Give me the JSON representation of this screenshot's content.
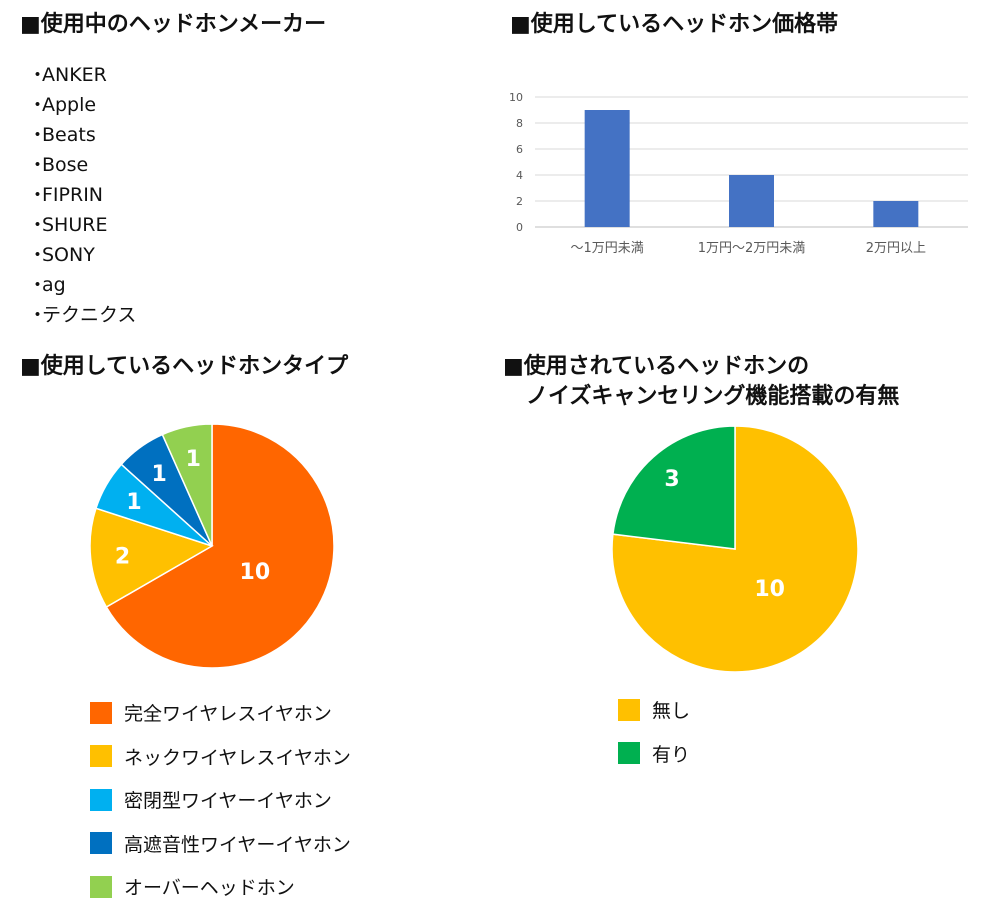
{
  "makers": {
    "title": "■使用中のヘッドホンメーカー",
    "bullet": "・",
    "items": [
      "ANKER",
      "Apple",
      "Beats",
      "Bose",
      "FIPRIN",
      "SHURE",
      "SONY",
      "ag",
      "テクニクス"
    ]
  },
  "price": {
    "title": "■使用しているヘッドホン価格帯"
  },
  "type": {
    "title": "■使用しているヘッドホンタイプ"
  },
  "nc": {
    "title_line1": "■使用されているヘッドホンの",
    "title_line2": "ノイズキャンセリング機能搭載の有無"
  },
  "chart_data": [
    {
      "type": "bar",
      "categories": [
        "～1万円未満",
        "1万円～2万円未満",
        "2万円以上"
      ],
      "values": [
        9,
        4,
        2
      ],
      "ylim": [
        0,
        10
      ],
      "yticks": [
        0,
        2,
        4,
        6,
        8,
        10
      ],
      "grid": true,
      "color": "#4472C4"
    },
    {
      "type": "pie",
      "labels": [
        "完全ワイヤレスイヤホン",
        "ネックワイヤレスイヤホン",
        "密閉型ワイヤーイヤホン",
        "高遮音性ワイヤーイヤホン",
        "オーバーヘッドホン"
      ],
      "values": [
        10,
        2,
        1,
        1,
        1
      ],
      "colors": [
        "#FF6600",
        "#FFC000",
        "#00B0F0",
        "#0070C0",
        "#92D050"
      ],
      "legend": "bottom"
    },
    {
      "type": "pie",
      "labels": [
        "無し",
        "有り"
      ],
      "values": [
        10,
        3
      ],
      "colors": [
        "#FFC000",
        "#00B050"
      ],
      "legend": "bottom"
    }
  ]
}
